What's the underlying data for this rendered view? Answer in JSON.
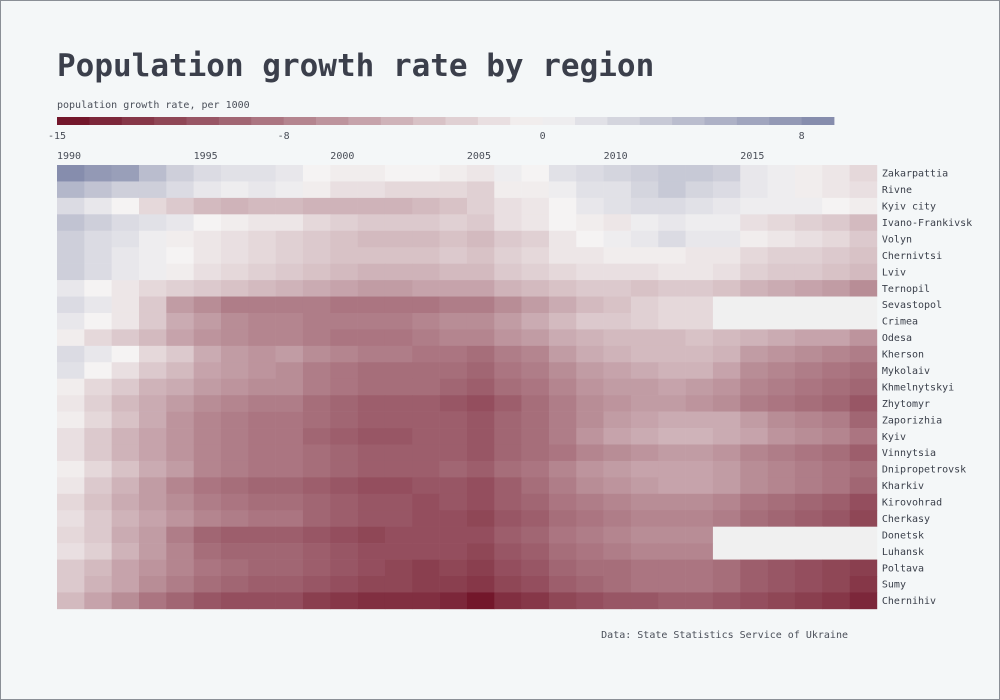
{
  "title": "Population growth rate by region",
  "source": "Data: State Statistics Service of Ukraine",
  "colors": {
    "background": "#f4f7f8",
    "negative_extreme": "#6e0f24",
    "neutral": "#f5f3f3",
    "positive_extreme": "#7f87a9",
    "missing": "#f0f0f0",
    "text": "#3a3f4a"
  },
  "legend": {
    "title": "population growth rate, per 1000",
    "ticks": [
      -15,
      -8,
      0,
      8
    ],
    "domain": [
      -15,
      9
    ]
  },
  "chart_data": {
    "type": "heatmap",
    "title": "Population growth rate by region",
    "colorbar_label": "population growth rate, per 1000",
    "x": [
      1990,
      1991,
      1992,
      1993,
      1994,
      1995,
      1996,
      1997,
      1998,
      1999,
      2000,
      2001,
      2002,
      2003,
      2004,
      2005,
      2006,
      2007,
      2008,
      2009,
      2010,
      2011,
      2012,
      2013,
      2014,
      2015,
      2016,
      2017,
      2018,
      2019
    ],
    "x_tick_labels": [
      1990,
      1995,
      2000,
      2005,
      2010,
      2015
    ],
    "regions": [
      "Zakarpattia",
      "Rivne",
      "Kyiv city",
      "Ivano-Frankivsk",
      "Volyn",
      "Chernivtsi",
      "Lviv",
      "Ternopil",
      "Sevastopol",
      "Crimea",
      "Odesa",
      "Kherson",
      "Mykolaiv",
      "Khmelnytskyi",
      "Zhytomyr",
      "Zaporizhia",
      "Kyiv",
      "Vinnytsia",
      "Dnipropetrovsk",
      "Kharkiv",
      "Kirovohrad",
      "Cherkasy",
      "Donetsk",
      "Luhansk",
      "Poltava",
      "Sumy",
      "Chernihiv"
    ],
    "values": [
      [
        8.5,
        7.5,
        7,
        4.5,
        3,
        2,
        1.5,
        1.5,
        1,
        0,
        -0.5,
        -0.5,
        0,
        0,
        -0.5,
        -1,
        0.5,
        0,
        1.5,
        2,
        2.5,
        3,
        3.5,
        3.5,
        3,
        1,
        0.5,
        -0.5,
        -1,
        -2
      ],
      [
        5,
        4,
        3,
        3,
        2,
        1,
        0.5,
        1,
        0.5,
        -0.5,
        -1.5,
        -1.5,
        -2,
        -2,
        -2,
        -2.5,
        -0.5,
        -0.5,
        0.5,
        1.5,
        1.5,
        2.5,
        3.5,
        2.5,
        2,
        1,
        0.5,
        -0.5,
        -1,
        -1.5
      ],
      [
        2,
        1,
        0,
        -2,
        -3,
        -4,
        -4.5,
        -4,
        -4,
        -4.5,
        -4.5,
        -4.5,
        -4.5,
        -4,
        -3.5,
        -2.5,
        -1.5,
        -1,
        0,
        1,
        1.5,
        2,
        2,
        1.5,
        1,
        0.5,
        0.5,
        0.5,
        0,
        -0.5
      ],
      [
        4,
        3,
        2,
        1.5,
        1,
        0,
        -0.5,
        -1,
        -1,
        -2,
        -2.5,
        -3,
        -3,
        -3,
        -2.5,
        -3,
        -1.5,
        -1,
        0,
        -0.5,
        -1,
        0.5,
        1,
        0.5,
        0.5,
        -1.5,
        -2,
        -2.5,
        -3,
        -4
      ],
      [
        3,
        2,
        1.5,
        0.5,
        -0.5,
        -1,
        -1.5,
        -2,
        -2.5,
        -3,
        -3.5,
        -4,
        -4,
        -4,
        -3.5,
        -4,
        -3,
        -2.5,
        -1,
        0,
        0.5,
        1,
        2,
        1,
        1,
        -0.5,
        -1,
        -1.5,
        -2,
        -3
      ],
      [
        3,
        2,
        1,
        0.5,
        0,
        -1,
        -1.5,
        -2,
        -2.5,
        -3,
        -3.5,
        -3.5,
        -3.5,
        -3.5,
        -3,
        -3.5,
        -2.5,
        -2,
        -1,
        -1,
        -0.5,
        -0.5,
        -0.5,
        -1,
        -1,
        -2,
        -2.5,
        -2.5,
        -3,
        -3.5
      ],
      [
        3,
        2,
        1,
        0.5,
        -0.5,
        -1.5,
        -2,
        -2.5,
        -3,
        -3.5,
        -4,
        -4.5,
        -4.5,
        -4.5,
        -4,
        -4,
        -3,
        -2.5,
        -2,
        -1.5,
        -1.5,
        -1.5,
        -1,
        -1,
        -1.5,
        -2.5,
        -3,
        -3,
        -3.5,
        -4
      ],
      [
        1,
        0,
        -1,
        -2,
        -2.5,
        -3,
        -3.5,
        -4,
        -4.5,
        -5,
        -5.5,
        -6,
        -6,
        -5.5,
        -5.5,
        -5.5,
        -4.5,
        -4,
        -3.5,
        -3,
        -3,
        -3.5,
        -3,
        -3,
        -3.5,
        -4.5,
        -5,
        -5.5,
        -6,
        -7
      ],
      [
        2,
        1,
        -1,
        -3,
        -6,
        -7,
        -8,
        -8,
        -8,
        -8,
        -8.5,
        -8.5,
        -8.5,
        -8.5,
        -8,
        -8,
        -7,
        -6,
        -5,
        -4,
        -3.5,
        -2.5,
        -2,
        -2,
        null,
        null,
        null,
        null,
        null,
        null
      ],
      [
        1,
        0,
        -1,
        -3,
        -5,
        -6,
        -7,
        -7.5,
        -7.5,
        -8,
        -8,
        -8,
        -8,
        -7.5,
        -7,
        -7,
        -6,
        -5,
        -4,
        -3,
        -3,
        -2.5,
        -2,
        -2,
        null,
        null,
        null,
        null,
        null,
        null
      ],
      [
        -0.5,
        -2,
        -3,
        -4,
        -5.5,
        -6.5,
        -7,
        -7.5,
        -7.5,
        -8,
        -8.5,
        -8.5,
        -8.5,
        -8,
        -7.5,
        -7.5,
        -6.5,
        -6,
        -5,
        -4.5,
        -4,
        -4,
        -4,
        -3.5,
        -4,
        -4.5,
        -5,
        -5.5,
        -5.5,
        -6.5
      ],
      [
        2,
        1,
        0,
        -2,
        -3,
        -5,
        -6,
        -6.5,
        -6,
        -7,
        -7.5,
        -8,
        -8,
        -8.5,
        -8.5,
        -9,
        -8,
        -7.5,
        -6,
        -5,
        -4.5,
        -4,
        -4,
        -4,
        -4.5,
        -6,
        -6.5,
        -7,
        -7.5,
        -8
      ],
      [
        1.5,
        0,
        -1.5,
        -3,
        -4,
        -5.5,
        -6,
        -6.5,
        -7,
        -8,
        -8.5,
        -9,
        -9,
        -9,
        -9,
        -9.5,
        -8.5,
        -8,
        -7,
        -6,
        -5.5,
        -5,
        -4.5,
        -4.5,
        -5.5,
        -7,
        -7.5,
        -8,
        -8.5,
        -9
      ],
      [
        -0.5,
        -2,
        -3,
        -4.5,
        -5,
        -6,
        -6.5,
        -7,
        -7,
        -8,
        -8.5,
        -9,
        -9,
        -9,
        -9.5,
        -10,
        -9,
        -8.5,
        -7.5,
        -6.5,
        -6,
        -6,
        -5.5,
        -6,
        -6.5,
        -7.5,
        -8,
        -8.5,
        -9,
        -9.5
      ],
      [
        -1,
        -2.5,
        -4,
        -5,
        -6,
        -7,
        -7.5,
        -8,
        -8,
        -9,
        -9.5,
        -10,
        -10,
        -10,
        -10.5,
        -11,
        -10,
        -9,
        -8,
        -7,
        -6.5,
        -6,
        -6,
        -6.5,
        -7,
        -8,
        -8.5,
        -9,
        -9.5,
        -10.5
      ],
      [
        -0.5,
        -2,
        -3.5,
        -5,
        -6.5,
        -7.5,
        -8,
        -8.5,
        -8.5,
        -9,
        -9.5,
        -10,
        -10,
        -10,
        -10,
        -10.5,
        -9.5,
        -9,
        -8,
        -7,
        -6,
        -5.5,
        -5,
        -5,
        -5,
        -6,
        -7,
        -7.5,
        -8,
        -9.5
      ],
      [
        -1.5,
        -3,
        -4.5,
        -5.5,
        -6.5,
        -7.5,
        -8,
        -8.5,
        -8.5,
        -9.5,
        -10,
        -10.5,
        -10.5,
        -10,
        -10,
        -10.5,
        -9.5,
        -9,
        -8,
        -6.5,
        -5.5,
        -5,
        -4.5,
        -4.5,
        -5,
        -5.5,
        -6.5,
        -7,
        -7.5,
        -8.5
      ],
      [
        -1.5,
        -3,
        -4.5,
        -5.5,
        -6.5,
        -7.5,
        -8,
        -8.5,
        -8.5,
        -9,
        -9.5,
        -10,
        -10,
        -10,
        -10,
        -10.5,
        -9.5,
        -9,
        -8.5,
        -7.5,
        -7,
        -6.5,
        -6,
        -6,
        -6.5,
        -7.5,
        -8,
        -8.5,
        -9,
        -10
      ],
      [
        -0.5,
        -2,
        -3.5,
        -5,
        -6,
        -7.5,
        -8,
        -8.5,
        -8.5,
        -9,
        -9.5,
        -10,
        -10,
        -10,
        -9.5,
        -10,
        -9,
        -8.5,
        -7.5,
        -6.5,
        -6,
        -5.5,
        -5.5,
        -5.5,
        -6,
        -7,
        -7.5,
        -8,
        -8.5,
        -9
      ],
      [
        -1,
        -3,
        -4.5,
        -6,
        -7.5,
        -8.5,
        -9,
        -9.5,
        -9.5,
        -10,
        -10.5,
        -11,
        -11,
        -10.5,
        -10.5,
        -11,
        -10,
        -9,
        -8,
        -7,
        -6.5,
        -6,
        -5.5,
        -5.5,
        -6,
        -7,
        -7.5,
        -8,
        -8.5,
        -9.5
      ],
      [
        -2,
        -3.5,
        -5,
        -6,
        -7,
        -8,
        -8.5,
        -9,
        -9,
        -9.5,
        -10,
        -10.5,
        -10.5,
        -11,
        -10.5,
        -11,
        -10,
        -9.5,
        -8.5,
        -8,
        -7.5,
        -7,
        -7,
        -7,
        -7.5,
        -8.5,
        -9,
        -9.5,
        -10,
        -11
      ],
      [
        -1.5,
        -3,
        -4.5,
        -5.5,
        -6.5,
        -7.5,
        -8,
        -8.5,
        -8.5,
        -9.5,
        -10,
        -10.5,
        -10.5,
        -11,
        -11,
        -11.5,
        -10.5,
        -10,
        -9,
        -8.5,
        -8,
        -7.5,
        -7.5,
        -7.5,
        -8,
        -9,
        -9.5,
        -10,
        -10.5,
        -11.5
      ],
      [
        -2,
        -3,
        -5,
        -6,
        -8,
        -9.5,
        -10,
        -10,
        -10,
        -10.5,
        -11,
        -11.5,
        -11,
        -11,
        -11,
        -11,
        -10,
        -9.5,
        -8.5,
        -8,
        -7.5,
        -7,
        -7,
        -7,
        null,
        null,
        null,
        null,
        null,
        null
      ],
      [
        -1.5,
        -2.5,
        -4.5,
        -6,
        -7.5,
        -9,
        -9.5,
        -9.5,
        -9.5,
        -10,
        -10.5,
        -11,
        -11,
        -11,
        -11,
        -11.5,
        -10.5,
        -10,
        -9,
        -8.5,
        -8,
        -7.5,
        -7.5,
        -7.5,
        null,
        null,
        null,
        null,
        null,
        null
      ],
      [
        -3,
        -4,
        -5.5,
        -6.5,
        -7.5,
        -8.5,
        -9,
        -9.5,
        -9.5,
        -10,
        -10.5,
        -11,
        -11.5,
        -12,
        -11.5,
        -12,
        -11,
        -10.5,
        -9.5,
        -9,
        -9,
        -8.5,
        -8.5,
        -8.5,
        -9,
        -10,
        -10.5,
        -11,
        -11.5,
        -12
      ],
      [
        -3,
        -4.5,
        -5.5,
        -7,
        -8,
        -9,
        -9.5,
        -10,
        -10,
        -10.5,
        -11,
        -11.5,
        -11.5,
        -12,
        -12,
        -12.5,
        -11.5,
        -11,
        -10,
        -9.5,
        -9,
        -8.5,
        -8.5,
        -8.5,
        -9,
        -10,
        -10.5,
        -11,
        -11.5,
        -12.5
      ],
      [
        -4,
        -5.5,
        -7,
        -8.5,
        -9.5,
        -10.5,
        -11,
        -11,
        -11,
        -12,
        -12.5,
        -13,
        -13,
        -13,
        -13.5,
        -14.5,
        -13,
        -12.5,
        -11.5,
        -11,
        -10.5,
        -10.5,
        -10,
        -10,
        -10.5,
        -11,
        -11.5,
        -12,
        -12.5,
        -13.5
      ]
    ]
  }
}
